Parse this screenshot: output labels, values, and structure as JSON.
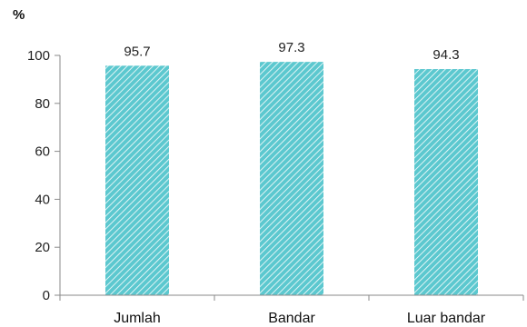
{
  "chart_data": {
    "type": "bar",
    "categories": [
      "Jumlah",
      "Bandar",
      "Luar bandar"
    ],
    "values": [
      95.7,
      97.3,
      94.3
    ],
    "value_labels": [
      "95.7",
      "97.3",
      "94.3"
    ],
    "title": "",
    "xlabel": "",
    "ylabel": "%",
    "ylim": [
      0,
      100
    ],
    "yticks": [
      0,
      20,
      40,
      60,
      80,
      100
    ],
    "ytick_labels": [
      "0",
      "20",
      "40",
      "60",
      "80",
      "100"
    ],
    "grid": false,
    "legend": "none",
    "bar_color": "#5cc8cf",
    "bar_pattern": "diagonal-hatch"
  }
}
